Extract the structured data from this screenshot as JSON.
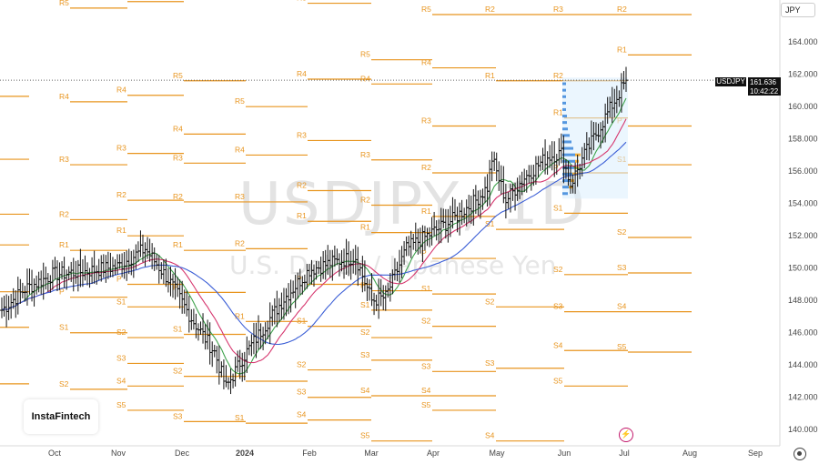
{
  "toolbar": {
    "currency_button": "JPY"
  },
  "price_tag": {
    "symbol": "USDJPY",
    "price": "161.636",
    "time": "10:42:22"
  },
  "watermark": {
    "title": "USDJPY, 1D",
    "subtitle": "U.S. Dollar / Japanese Yen"
  },
  "brand": {
    "logo": "InstaFintech"
  },
  "colors": {
    "pivot": "#e8951f",
    "candle": "#111111",
    "ma_fast": "#3fa34d",
    "ma_mid": "#d6366e",
    "ma_slow": "#3c5fd6",
    "profile_up": "#2f7fd8",
    "profile_down": "#f2a21b",
    "profile_box": "#dbeefd"
  },
  "icons": {
    "settings": "gear-icon",
    "alert": "lightning-icon"
  },
  "chart_data": {
    "type": "candlestick",
    "symbol": "USDJPY",
    "timeframe": "1D",
    "y_ticks": [
      140,
      142,
      144,
      146,
      148,
      150,
      152,
      154,
      156,
      158,
      160,
      162,
      164
    ],
    "y_tick_labels": [
      "140.000",
      "142.000",
      "144.000",
      "146.000",
      "148.000",
      "150.000",
      "152.000",
      "154.000",
      "156.000",
      "158.000",
      "160.000",
      "162.000",
      "164.000"
    ],
    "ylim": [
      139,
      166.6
    ],
    "x_labels": [
      "Oct",
      "Nov",
      "Dec",
      "2024",
      "Feb",
      "Mar",
      "Apr",
      "May",
      "Jun",
      "Jul",
      "Aug",
      "Sep"
    ],
    "last_price": 161.636,
    "anchor_points": [
      [
        0,
        147.4
      ],
      [
        10,
        148.7
      ],
      [
        22,
        149.6
      ],
      [
        36,
        149.8
      ],
      [
        50,
        150.1
      ],
      [
        62,
        151.2
      ],
      [
        72,
        149.3
      ],
      [
        82,
        146.9
      ],
      [
        92,
        144.8
      ],
      [
        97,
        142.6
      ],
      [
        104,
        144.4
      ],
      [
        115,
        146.7
      ],
      [
        122,
        148.1
      ],
      [
        133,
        149.9
      ],
      [
        142,
        150.3
      ],
      [
        153,
        150.7
      ],
      [
        160,
        148.0
      ],
      [
        166,
        148.2
      ],
      [
        175,
        151.2
      ],
      [
        185,
        152.1
      ],
      [
        195,
        153.0
      ],
      [
        205,
        154.2
      ],
      [
        210,
        155.0
      ],
      [
        212,
        156.8
      ],
      [
        218,
        154.2
      ],
      [
        226,
        155.6
      ],
      [
        236,
        156.9
      ],
      [
        242,
        157.1
      ],
      [
        246,
        155.2
      ],
      [
        252,
        157.0
      ],
      [
        262,
        159.6
      ],
      [
        270,
        161.6
      ]
    ],
    "moving_averages": [
      {
        "color": "#3fa34d",
        "period": 10
      },
      {
        "color": "#d6366e",
        "period": 20
      },
      {
        "color": "#3c5fd6",
        "period": 40
      }
    ],
    "pivot_levels": [
      {
        "date": "Oct",
        "levels": [
          {
            "l": "R5",
            "v": 166.1
          },
          {
            "l": "R4",
            "v": 160.3
          },
          {
            "l": "R3",
            "v": 156.4
          },
          {
            "l": "R2",
            "v": 153.0
          },
          {
            "l": "R1",
            "v": 151.1
          },
          {
            "l": "P",
            "v": 148.2
          },
          {
            "l": "S1",
            "v": 146.0
          },
          {
            "l": "S2",
            "v": 142.5
          }
        ]
      },
      {
        "date": "Nov",
        "levels": [
          {
            "l": "R5",
            "v": 166.5
          },
          {
            "l": "R4",
            "v": 160.7
          },
          {
            "l": "R3",
            "v": 157.1
          },
          {
            "l": "R2",
            "v": 154.2
          },
          {
            "l": "R1",
            "v": 152.0
          },
          {
            "l": "P",
            "v": 149.0
          },
          {
            "l": "S1",
            "v": 147.6
          },
          {
            "l": "S2",
            "v": 145.7
          },
          {
            "l": "S3",
            "v": 144.1
          },
          {
            "l": "S4",
            "v": 142.7
          },
          {
            "l": "S5",
            "v": 141.2
          }
        ]
      },
      {
        "date": "Dec",
        "levels": [
          {
            "l": "R5",
            "v": 161.6
          },
          {
            "l": "R4",
            "v": 158.3
          },
          {
            "l": "R3",
            "v": 156.5
          },
          {
            "l": "R2",
            "v": 154.1
          },
          {
            "l": "R1",
            "v": 151.1
          },
          {
            "l": "P",
            "v": 148.5
          },
          {
            "l": "S1",
            "v": 145.9
          },
          {
            "l": "S2",
            "v": 143.3
          },
          {
            "l": "S3",
            "v": 140.5
          }
        ]
      },
      {
        "date": "Jan",
        "levels": [
          {
            "l": "R5",
            "v": 160.0
          },
          {
            "l": "R4",
            "v": 157.0
          },
          {
            "l": "R3",
            "v": 154.1
          },
          {
            "l": "R2",
            "v": 151.2
          },
          {
            "l": "R1",
            "v": 146.7
          },
          {
            "l": "P",
            "v": 143.0
          },
          {
            "l": "S1",
            "v": 140.4
          }
        ]
      },
      {
        "date": "Feb",
        "levels": [
          {
            "l": "R5",
            "v": 166.4
          },
          {
            "l": "R4",
            "v": 161.7
          },
          {
            "l": "R3",
            "v": 157.9
          },
          {
            "l": "R2",
            "v": 154.8
          },
          {
            "l": "R1",
            "v": 152.9
          },
          {
            "l": "P",
            "v": 149.0
          },
          {
            "l": "S1",
            "v": 146.4
          },
          {
            "l": "S2",
            "v": 143.7
          },
          {
            "l": "S3",
            "v": 142.0
          },
          {
            "l": "S4",
            "v": 140.6
          }
        ]
      },
      {
        "date": "Mar",
        "levels": [
          {
            "l": "R5",
            "v": 162.9
          },
          {
            "l": "R4",
            "v": 161.4
          },
          {
            "l": "R3",
            "v": 156.7
          },
          {
            "l": "R2",
            "v": 153.9
          },
          {
            "l": "R1",
            "v": 152.2
          },
          {
            "l": "P",
            "v": 148.6
          },
          {
            "l": "S1",
            "v": 147.4
          },
          {
            "l": "S2",
            "v": 145.7
          },
          {
            "l": "S3",
            "v": 144.3
          },
          {
            "l": "S4",
            "v": 142.1
          },
          {
            "l": "S5",
            "v": 139.3
          }
        ]
      },
      {
        "date": "Apr",
        "levels": [
          {
            "l": "R5",
            "v": 165.7
          },
          {
            "l": "R4",
            "v": 162.4
          },
          {
            "l": "R3",
            "v": 158.8
          },
          {
            "l": "R2",
            "v": 155.9
          },
          {
            "l": "R1",
            "v": 153.2
          },
          {
            "l": "P",
            "v": 150.6
          },
          {
            "l": "S1",
            "v": 148.4
          },
          {
            "l": "S2",
            "v": 146.4
          },
          {
            "l": "S3",
            "v": 143.6
          },
          {
            "l": "S4",
            "v": 142.1
          },
          {
            "l": "S5",
            "v": 141.2
          }
        ]
      },
      {
        "date": "May",
        "levels": [
          {
            "l": "R2",
            "v": 165.7
          },
          {
            "l": "R1",
            "v": 161.6
          },
          {
            "l": "S1",
            "v": 152.4
          },
          {
            "l": "S2",
            "v": 147.6
          },
          {
            "l": "S3",
            "v": 143.8
          },
          {
            "l": "S4",
            "v": 139.3
          }
        ]
      },
      {
        "date": "Jun",
        "levels": [
          {
            "l": "R3",
            "v": 165.7
          },
          {
            "l": "R2",
            "v": 161.6
          },
          {
            "l": "R1",
            "v": 159.3
          },
          {
            "l": "P",
            "v": 155.9
          },
          {
            "l": "S1",
            "v": 153.4
          },
          {
            "l": "S2",
            "v": 149.6
          },
          {
            "l": "S3",
            "v": 147.3
          },
          {
            "l": "S4",
            "v": 144.9
          },
          {
            "l": "S5",
            "v": 142.7
          }
        ]
      },
      {
        "date": "Jul",
        "levels": [
          {
            "l": "R2",
            "v": 165.7
          },
          {
            "l": "R1",
            "v": 163.2
          },
          {
            "l": "P",
            "v": 158.8
          },
          {
            "l": "S1",
            "v": 156.4
          },
          {
            "l": "S2",
            "v": 151.9
          },
          {
            "l": "S3",
            "v": 149.7
          },
          {
            "l": "S4",
            "v": 147.3
          },
          {
            "l": "S5",
            "v": 144.8
          }
        ]
      }
    ]
  }
}
